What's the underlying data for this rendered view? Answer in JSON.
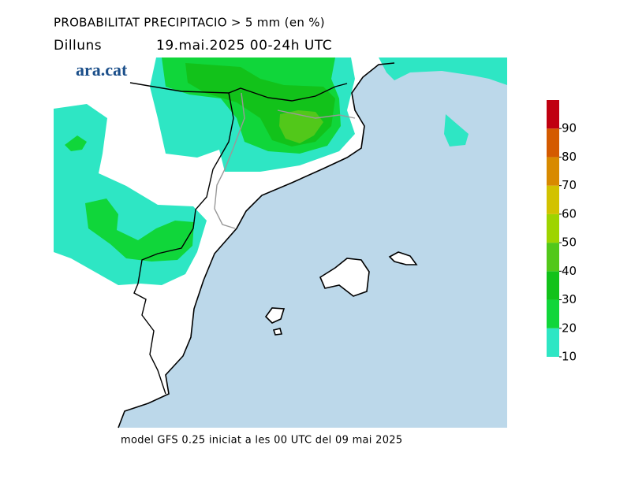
{
  "header": {
    "title": "PROBABILITAT PRECIPITACIO > 5 mm (en %)",
    "day": "Dilluns",
    "period": "19.mai.2025 00-24h UTC"
  },
  "logo": "ara.cat",
  "footer": "model GFS 0.25 iniciat a les 00 UTC del 09 mai 2025",
  "legend": {
    "bounds": [
      10,
      20,
      30,
      40,
      50,
      60,
      70,
      80,
      90,
      100
    ],
    "colors": [
      "#2ee6c4",
      "#10d63a",
      "#12c21a",
      "#52c81a",
      "#9ed400",
      "#d2c200",
      "#d88a00",
      "#d45a00",
      "#c00010"
    ],
    "ticks": [
      10,
      20,
      30,
      40,
      50,
      60,
      70,
      80,
      90
    ]
  }
}
